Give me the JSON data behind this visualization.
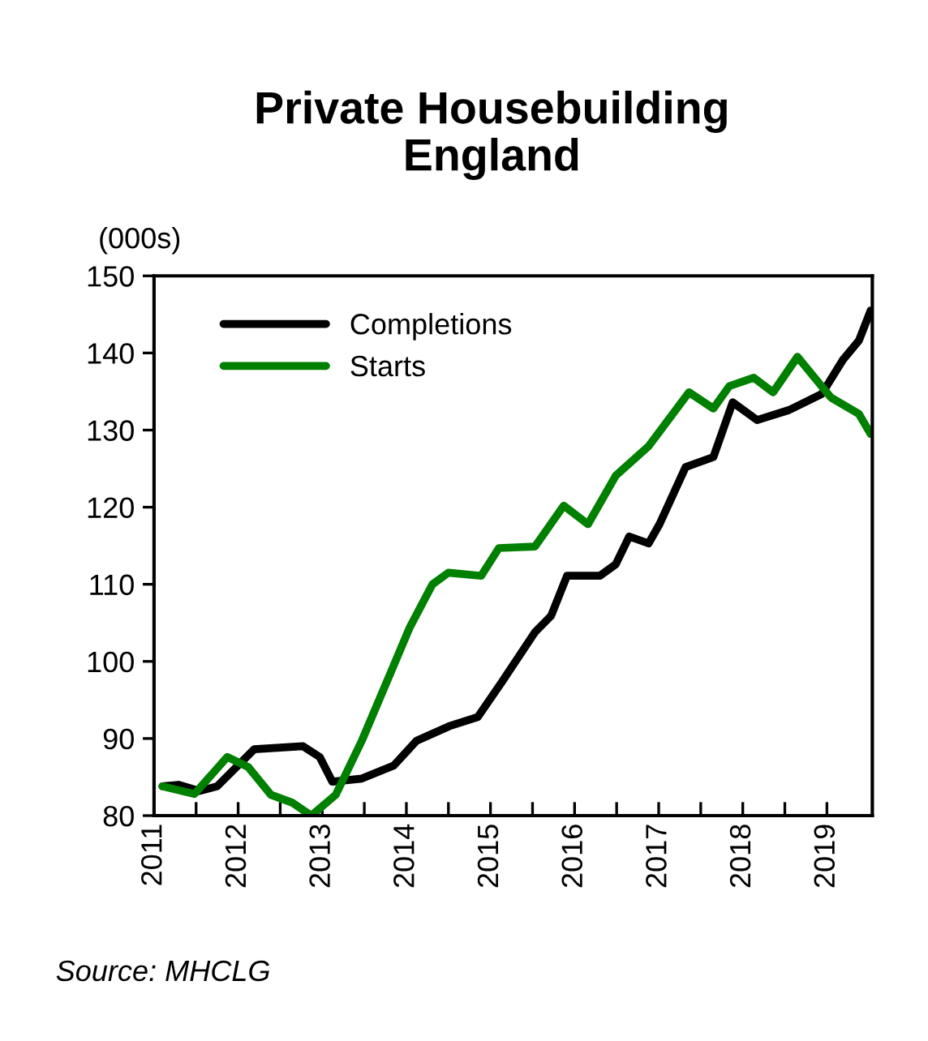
{
  "chart_data": {
    "type": "line",
    "title": "Private Housebuilding\nEngland",
    "ylabel": "(000s)",
    "annotations": [
      "Source: MHCLG"
    ],
    "xlim": [
      2011,
      2019.54
    ],
    "ylim": [
      80,
      150
    ],
    "xticks": [
      2011,
      {
        "value": 2011.5,
        "label": null
      },
      2012,
      {
        "value": 2012.5,
        "label": null
      },
      2013,
      {
        "value": 2013.5,
        "label": null
      },
      2014,
      {
        "value": 2014.5,
        "label": null
      },
      2015,
      {
        "value": 2015.5,
        "label": null
      },
      2016,
      {
        "value": 2016.5,
        "label": null
      },
      2017,
      {
        "value": 2017.5,
        "label": null
      },
      2018,
      {
        "value": 2018.5,
        "label": null
      },
      2019
    ],
    "yticks": [
      80,
      90,
      100,
      110,
      120,
      130,
      140,
      150
    ],
    "grid": false,
    "legend": "top left",
    "marker": "none",
    "line_style": "solid",
    "series": [
      {
        "name": "Completions",
        "color": "#000000",
        "x": [
          2011.1,
          2011.29,
          2011.54,
          2011.75,
          2012.19,
          2012.77,
          2012.97,
          2013.12,
          2013.47,
          2013.85,
          2014.12,
          2014.51,
          2014.85,
          2015.14,
          2015.53,
          2015.72,
          2015.91,
          2016.3,
          2016.49,
          2016.65,
          2016.88,
          2017.01,
          2017.32,
          2017.65,
          2017.88,
          2018.17,
          2018.55,
          2018.94,
          2019.19,
          2019.38,
          2019.52
        ],
        "values": [
          83.8,
          84,
          83.2,
          83.8,
          88.6,
          89,
          87.6,
          84.4,
          84.8,
          86.5,
          89.7,
          91.6,
          92.8,
          97.4,
          103.8,
          105.9,
          111.1,
          111.1,
          112.6,
          116.2,
          115.3,
          117.8,
          125.2,
          126.5,
          133.6,
          131.3,
          132.6,
          134.7,
          139.1,
          141.6,
          145.5
        ]
      },
      {
        "name": "Starts",
        "color": "#008000",
        "x": [
          2011.1,
          2011.48,
          2011.87,
          2012.12,
          2012.39,
          2012.64,
          2012.87,
          2013.16,
          2013.47,
          2013.85,
          2014.04,
          2014.31,
          2014.5,
          2014.89,
          2015.1,
          2015.53,
          2015.87,
          2016.16,
          2016.49,
          2016.88,
          2017.36,
          2017.65,
          2017.84,
          2018.13,
          2018.36,
          2018.65,
          2019.05,
          2019.38,
          2019.52
        ],
        "values": [
          83.8,
          82.8,
          87.6,
          86.3,
          82.7,
          81.7,
          80,
          82.7,
          89.7,
          99.5,
          104.4,
          110,
          111.5,
          111.1,
          114.7,
          114.9,
          120.2,
          117.8,
          124.1,
          127.9,
          134.9,
          132.8,
          135.7,
          136.8,
          134.9,
          139.5,
          134.2,
          132.1,
          129.5
        ]
      }
    ]
  }
}
